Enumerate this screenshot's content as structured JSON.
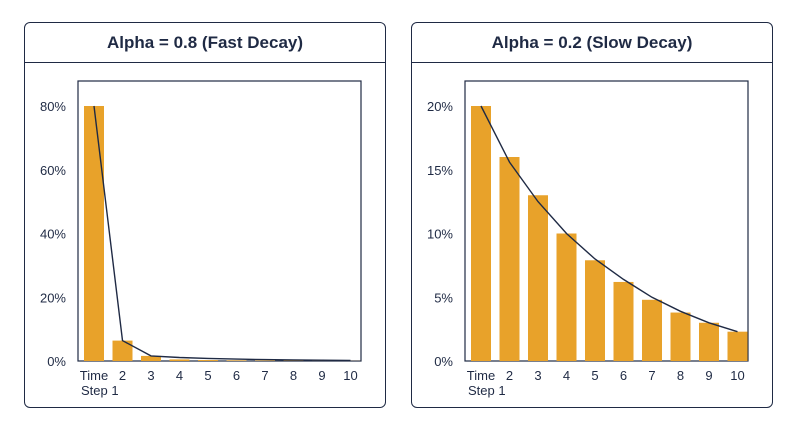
{
  "chart_data": [
    {
      "type": "bar",
      "title": "Alpha = 0.8 (Fast Decay)",
      "categories": [
        "Time Step 1",
        "2",
        "3",
        "4",
        "5",
        "6",
        "7",
        "8",
        "9",
        "10"
      ],
      "category_lines": [
        [
          "Time",
          "Step 1"
        ],
        [
          "2"
        ],
        [
          "3"
        ],
        [
          "4"
        ],
        [
          "5"
        ],
        [
          "6"
        ],
        [
          "7"
        ],
        [
          "8"
        ],
        [
          "9"
        ],
        [
          "10"
        ]
      ],
      "values": [
        80,
        6.4,
        1.6,
        0.5,
        0.3,
        0.2,
        0.15,
        0.1,
        0.05,
        0.03
      ],
      "curve": [
        80,
        6.4,
        1.6,
        1.1,
        0.8,
        0.6,
        0.45,
        0.35,
        0.25,
        0.2
      ],
      "ylim": [
        0,
        80
      ],
      "yticks": [
        0,
        20,
        40,
        60,
        80
      ],
      "ytick_labels": [
        "0%",
        "20%",
        "40%",
        "60%",
        "80%"
      ],
      "bar_color": "#e8a22a",
      "line_color": "#1f2a44",
      "xlabel": "",
      "ylabel": ""
    },
    {
      "type": "bar",
      "title": "Alpha = 0.2 (Slow Decay)",
      "categories": [
        "Time Step 1",
        "2",
        "3",
        "4",
        "5",
        "6",
        "7",
        "8",
        "9",
        "10"
      ],
      "category_lines": [
        [
          "Time",
          "Step 1"
        ],
        [
          "2"
        ],
        [
          "3"
        ],
        [
          "4"
        ],
        [
          "5"
        ],
        [
          "6"
        ],
        [
          "7"
        ],
        [
          "8"
        ],
        [
          "9"
        ],
        [
          "10"
        ]
      ],
      "values": [
        20,
        16,
        13,
        10,
        7.9,
        6.2,
        4.8,
        3.8,
        3.0,
        2.3
      ],
      "curve": [
        20,
        15.6,
        12.5,
        10,
        8,
        6.4,
        5,
        3.9,
        3.0,
        2.3
      ],
      "ylim": [
        0,
        20
      ],
      "yticks": [
        0,
        5,
        10,
        15,
        20
      ],
      "ytick_labels": [
        "0%",
        "5%",
        "10%",
        "15%",
        "20%"
      ],
      "bar_color": "#e8a22a",
      "line_color": "#1f2a44",
      "xlabel": "",
      "ylabel": ""
    }
  ]
}
